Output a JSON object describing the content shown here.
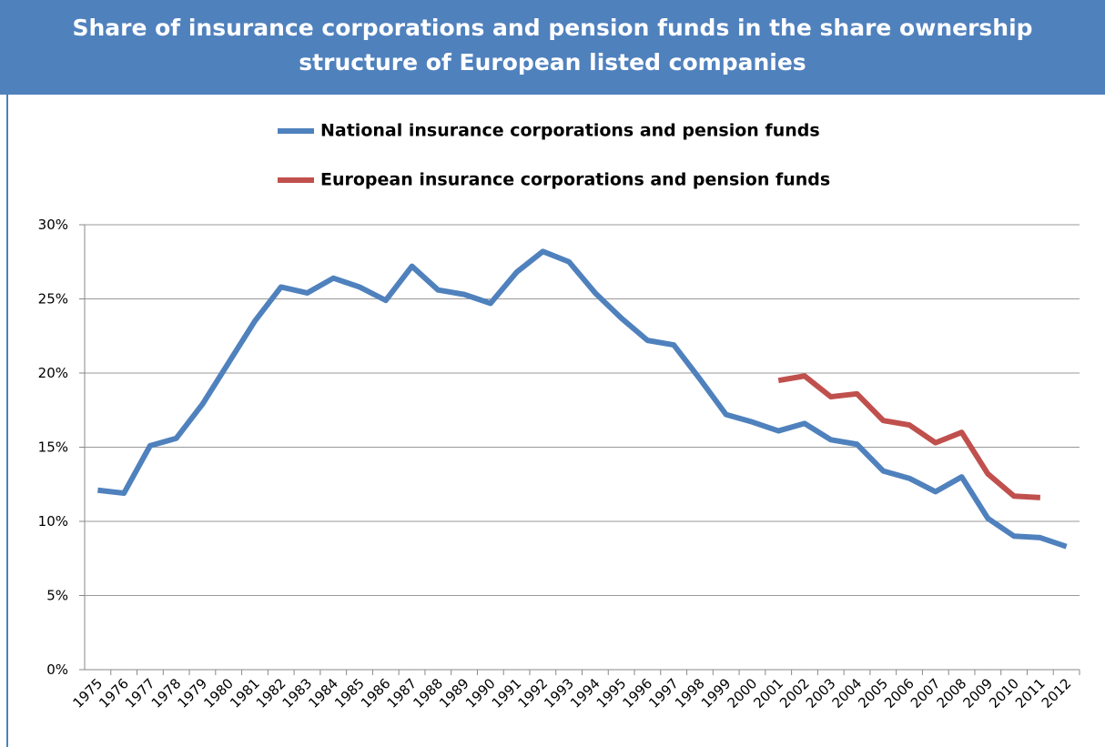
{
  "chart_data": {
    "type": "line",
    "title": "Share of insurance corporations and pension funds in the share ownership structure of European listed companies",
    "categories": [
      "1975",
      "1976",
      "1977",
      "1978",
      "1979",
      "1980",
      "1981",
      "1982",
      "1983",
      "1984",
      "1985",
      "1986",
      "1987",
      "1988",
      "1989",
      "1990",
      "1991",
      "1992",
      "1993",
      "1994",
      "1995",
      "1996",
      "1997",
      "1998",
      "1999",
      "2000",
      "2001",
      "2002",
      "2003",
      "2004",
      "2005",
      "2006",
      "2007",
      "2008",
      "2009",
      "2010",
      "2011",
      "2012"
    ],
    "series": [
      {
        "name": "National insurance corporations and pension funds",
        "color": "#4f81bd",
        "values": [
          12.1,
          11.9,
          15.1,
          15.6,
          17.9,
          20.7,
          23.5,
          25.8,
          25.4,
          26.4,
          25.8,
          24.9,
          27.2,
          25.6,
          25.3,
          24.7,
          26.8,
          28.2,
          27.5,
          25.4,
          23.7,
          22.2,
          21.9,
          19.6,
          17.2,
          16.7,
          16.1,
          16.6,
          15.5,
          15.2,
          13.4,
          12.9,
          12.0,
          13.0,
          10.2,
          9.0,
          8.9,
          8.3
        ]
      },
      {
        "name": "European insurance corporations and pension funds",
        "color": "#c0504d",
        "values": [
          null,
          null,
          null,
          null,
          null,
          null,
          null,
          null,
          null,
          null,
          null,
          null,
          null,
          null,
          null,
          null,
          null,
          null,
          null,
          null,
          null,
          null,
          null,
          null,
          null,
          null,
          19.5,
          19.8,
          18.4,
          18.6,
          16.8,
          16.5,
          15.3,
          16.0,
          13.2,
          11.7,
          11.6,
          null
        ]
      }
    ],
    "ylim": [
      0,
      30
    ],
    "yticks": [
      {
        "value": 0,
        "label": "0%"
      },
      {
        "value": 5,
        "label": "5%"
      },
      {
        "value": 10,
        "label": "10%"
      },
      {
        "value": 15,
        "label": "15%"
      },
      {
        "value": 20,
        "label": "20%"
      },
      {
        "value": 25,
        "label": "25%"
      },
      {
        "value": 30,
        "label": "30%"
      }
    ],
    "grid": true
  }
}
